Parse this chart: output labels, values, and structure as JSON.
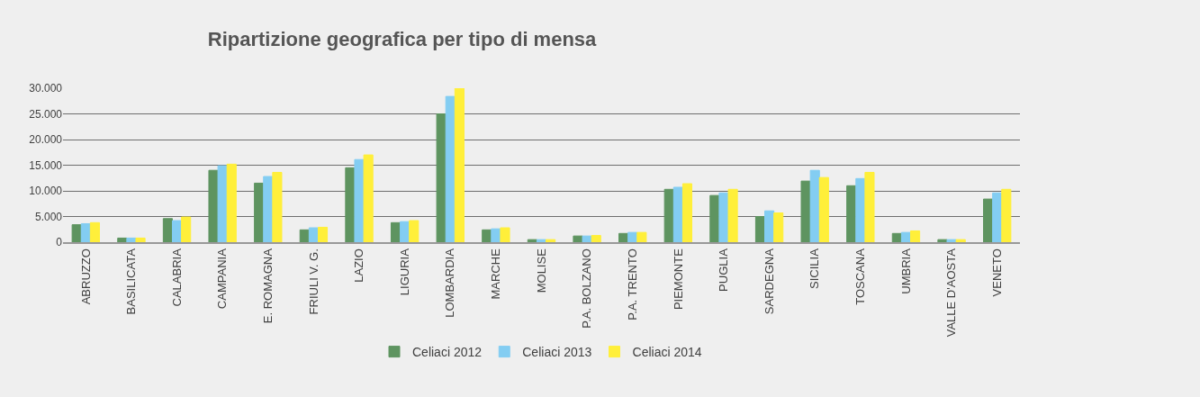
{
  "chart_data": {
    "type": "bar",
    "title": "Ripartizione geografica per tipo di mensa",
    "categories": [
      "ABRUZZO",
      "BASILICATA",
      "CALABRIA",
      "CAMPANIA",
      "E. ROMAGNA",
      "FRIULI V. G.",
      "LAZIO",
      "LIGURIA",
      "LOMBARDIA",
      "MARCHE",
      "MOLISE",
      "P.A. BOLZANO",
      "P.A. TRENTO",
      "PIEMONTE",
      "PUGLIA",
      "SARDEGNA",
      "SICILIA",
      "TOSCANA",
      "UMBRIA",
      "VALLE D'AOSTA",
      "VENETO"
    ],
    "series": [
      {
        "name": "Celiaci 2012",
        "color": "#5e9460",
        "values": [
          3400,
          800,
          4600,
          14000,
          11500,
          2400,
          14500,
          3800,
          25000,
          2400,
          500,
          1200,
          1700,
          10300,
          9100,
          5000,
          11900,
          11000,
          1700,
          500,
          8400
        ]
      },
      {
        "name": "Celiaci 2013",
        "color": "#83cdf2",
        "values": [
          3600,
          800,
          4200,
          14900,
          12800,
          2800,
          16100,
          4000,
          28400,
          2600,
          500,
          1200,
          1900,
          10700,
          9600,
          6100,
          14000,
          12400,
          1900,
          500,
          9600
        ]
      },
      {
        "name": "Celiaci 2014",
        "color": "#ffef3a",
        "values": [
          3800,
          800,
          4900,
          15200,
          13600,
          2900,
          17000,
          4200,
          30000,
          2800,
          500,
          1300,
          1900,
          11400,
          10300,
          5700,
          12600,
          13600,
          2200,
          500,
          10300
        ]
      }
    ],
    "ylim": [
      0,
      30000
    ],
    "yticks": [
      {
        "value": 0,
        "label": "0"
      },
      {
        "value": 5000,
        "label": "5.000"
      },
      {
        "value": 10000,
        "label": "10.000"
      },
      {
        "value": 15000,
        "label": "15.000"
      },
      {
        "value": 20000,
        "label": "20.000"
      },
      {
        "value": 25000,
        "label": "25.000"
      },
      {
        "value": 30000,
        "label": "30.000"
      }
    ],
    "grid": "y",
    "legend": "bottom"
  }
}
